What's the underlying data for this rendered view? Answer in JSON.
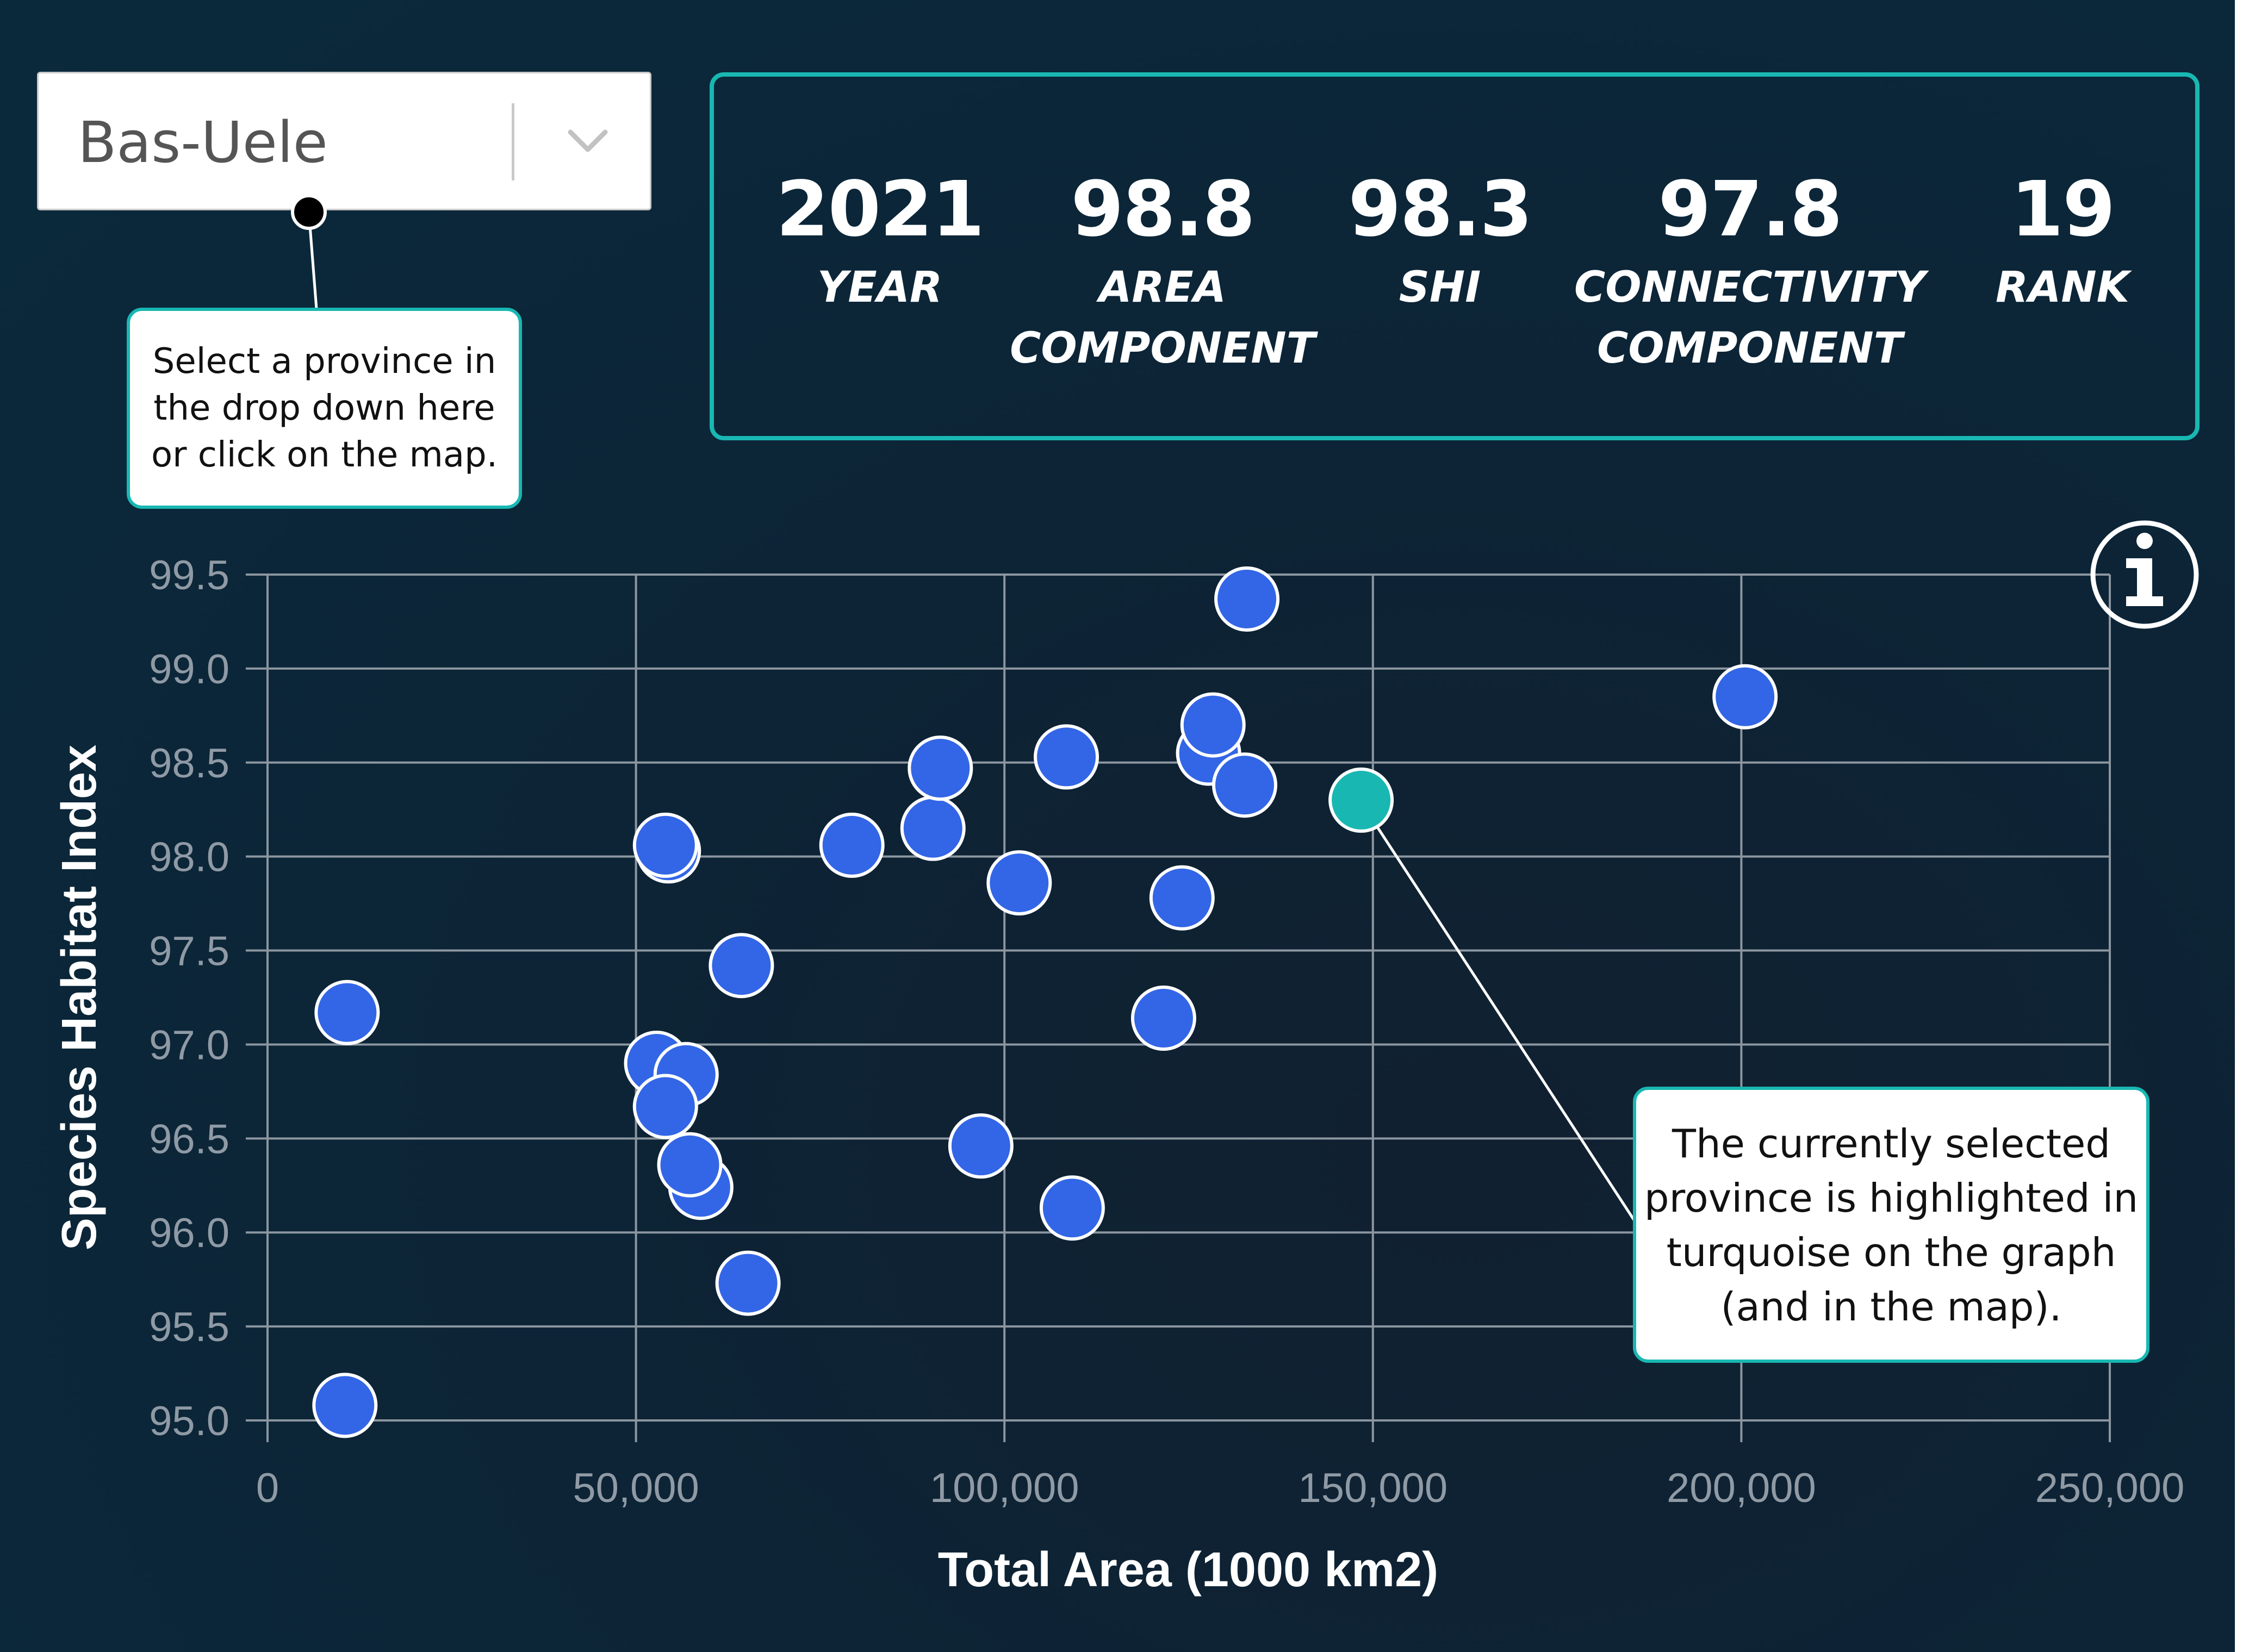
{
  "dropdown": {
    "selected": "Bas-Uele"
  },
  "stats": [
    {
      "value": "2021",
      "label_lines": [
        "YEAR"
      ]
    },
    {
      "value": "98.8",
      "label_lines": [
        "AREA",
        "COMPONENT"
      ]
    },
    {
      "value": "98.3",
      "label_lines": [
        "SHI"
      ]
    },
    {
      "value": "97.8",
      "label_lines": [
        "CONNECTIVITY",
        "COMPONENT"
      ]
    },
    {
      "value": "19",
      "label_lines": [
        "RANK"
      ]
    }
  ],
  "callouts": {
    "dropdown_hint_lines": [
      "Select a province in",
      "the drop down here",
      "or click on the map."
    ],
    "highlight_hint_lines": [
      "The currently selected",
      "province is highlighted in",
      "turquoise on the graph",
      "(and in the map)."
    ]
  },
  "info_icon": "info-icon",
  "colors": {
    "point": "#3366e6",
    "selected_point": "#19b7b2",
    "accent": "#19b7b2",
    "grid": "#8c96a0",
    "tick_label": "#8f9aa5",
    "axis_title": "#ffffff"
  },
  "chart_data": {
    "type": "scatter",
    "title": "",
    "xlabel": "Total Area (1000 km2)",
    "ylabel": "Species Habitat Index",
    "xlim": [
      0,
      250000
    ],
    "ylim": [
      95.0,
      99.5
    ],
    "x_ticks": [
      0,
      50000,
      100000,
      150000,
      200000,
      250000
    ],
    "x_tick_labels": [
      "0",
      "50,000",
      "100,000",
      "150,000",
      "200,000",
      "250,000"
    ],
    "y_ticks": [
      95.0,
      95.5,
      96.0,
      96.5,
      97.0,
      97.5,
      98.0,
      98.5,
      99.0,
      99.5
    ],
    "y_tick_labels": [
      "95.0",
      "95.5",
      "96.0",
      "96.5",
      "97.0",
      "97.5",
      "98.0",
      "98.5",
      "99.0",
      "99.5"
    ],
    "grid": true,
    "series": [
      {
        "points": [
          {
            "x": 10500,
            "y": 95.08
          },
          {
            "x": 10800,
            "y": 97.17
          },
          {
            "x": 52800,
            "y": 96.9
          },
          {
            "x": 56800,
            "y": 96.84
          },
          {
            "x": 54000,
            "y": 96.67
          },
          {
            "x": 58800,
            "y": 96.24
          },
          {
            "x": 57300,
            "y": 96.36
          },
          {
            "x": 54400,
            "y": 98.03
          },
          {
            "x": 54000,
            "y": 98.06
          },
          {
            "x": 64300,
            "y": 97.42
          },
          {
            "x": 65200,
            "y": 95.73
          },
          {
            "x": 79300,
            "y": 98.06
          },
          {
            "x": 90300,
            "y": 98.15
          },
          {
            "x": 91300,
            "y": 98.47
          },
          {
            "x": 96800,
            "y": 96.46
          },
          {
            "x": 102000,
            "y": 97.86
          },
          {
            "x": 108400,
            "y": 98.53
          },
          {
            "x": 109200,
            "y": 96.13
          },
          {
            "x": 121600,
            "y": 97.14
          },
          {
            "x": 124100,
            "y": 97.78
          },
          {
            "x": 127700,
            "y": 98.55
          },
          {
            "x": 128300,
            "y": 98.7
          },
          {
            "x": 132600,
            "y": 98.38
          },
          {
            "x": 132900,
            "y": 99.37
          },
          {
            "x": 200500,
            "y": 98.85
          }
        ]
      },
      {
        "highlighted": true,
        "points": [
          {
            "x": 148400,
            "y": 98.3
          }
        ]
      }
    ]
  }
}
